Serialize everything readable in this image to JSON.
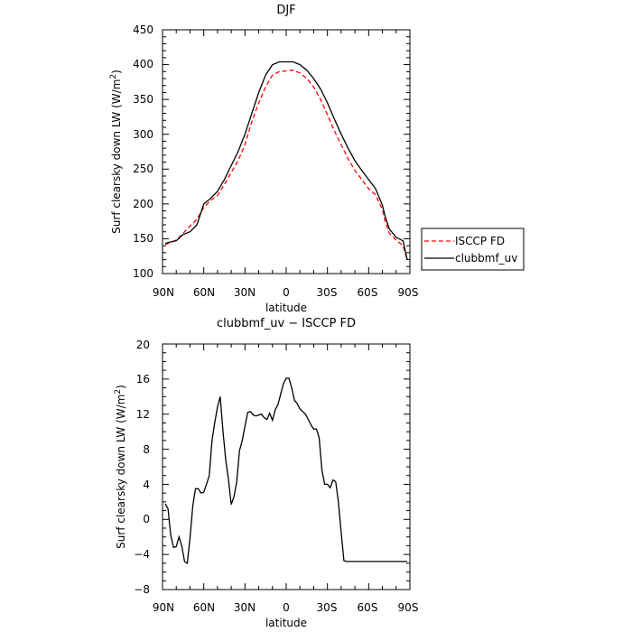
{
  "chart_data": [
    {
      "type": "line",
      "title": "DJF",
      "xlabel": "latitude",
      "ylabel": "Surf clearsky down LW (W/m²)",
      "ylabel_main": "Surf clearsky down LW (W/m",
      "ylabel_sup": "2",
      "ylabel_end": ")",
      "xlim": [
        90,
        -90
      ],
      "ylim": [
        100,
        450
      ],
      "yticks": [
        "100",
        "150",
        "200",
        "250",
        "300",
        "350",
        "400",
        "450"
      ],
      "xtick_labels": [
        "90N",
        "60N",
        "30N",
        "0",
        "30S",
        "60S",
        "90S"
      ],
      "legend_position": "right",
      "series": [
        {
          "name": "ISCCP FD",
          "color": "#ff0000",
          "dash": "dashed",
          "x": [
            88,
            85,
            80,
            75,
            70,
            65,
            60,
            55,
            50,
            45,
            40,
            35,
            30,
            25,
            20,
            15,
            10,
            5,
            0,
            -5,
            -10,
            -15,
            -20,
            -25,
            -30,
            -35,
            -40,
            -45,
            -50,
            -55,
            -60,
            -65,
            -70,
            -72,
            -75,
            -80,
            -85,
            -88
          ],
          "y": [
            142,
            144,
            148,
            158,
            168,
            178,
            195,
            205,
            212,
            228,
            245,
            262,
            285,
            318,
            345,
            368,
            385,
            390,
            391,
            392,
            388,
            380,
            368,
            350,
            328,
            305,
            285,
            265,
            248,
            235,
            222,
            213,
            192,
            175,
            158,
            148,
            140,
            120
          ]
        },
        {
          "name": "clubbmf_uv",
          "color": "#000000",
          "dash": "solid",
          "x": [
            88,
            85,
            80,
            75,
            70,
            65,
            60,
            55,
            50,
            45,
            40,
            35,
            30,
            25,
            20,
            15,
            10,
            5,
            0,
            -5,
            -10,
            -15,
            -20,
            -25,
            -30,
            -35,
            -40,
            -45,
            -50,
            -55,
            -60,
            -65,
            -70,
            -72,
            -75,
            -80,
            -85,
            -88
          ],
          "y": [
            143,
            145,
            147,
            156,
            160,
            170,
            200,
            208,
            218,
            235,
            255,
            275,
            300,
            330,
            360,
            385,
            400,
            404,
            404,
            404,
            400,
            392,
            380,
            365,
            345,
            322,
            300,
            280,
            262,
            248,
            235,
            222,
            198,
            182,
            164,
            152,
            147,
            120
          ]
        }
      ]
    },
    {
      "type": "line",
      "title": "clubbmf_uv − ISCCP FD",
      "xlabel": "latitude",
      "ylabel": "Surf clearsky down LW (W/m²)",
      "ylabel_main": "Surf clearsky down LW (W/m",
      "ylabel_sup": "2",
      "ylabel_end": ")",
      "xlim": [
        90,
        -90
      ],
      "ylim": [
        -8,
        20
      ],
      "yticks": [
        "−8",
        "−4",
        "0",
        "4",
        "8",
        "12",
        "16",
        "20"
      ],
      "xtick_labels": [
        "90N",
        "60N",
        "30N",
        "0",
        "30S",
        "60S",
        "90S"
      ],
      "series": [
        {
          "color": "#000000",
          "dash": "solid",
          "x": [
            88,
            86,
            84,
            82,
            80,
            78,
            76,
            74,
            72,
            70,
            68,
            66,
            64,
            62,
            60,
            58,
            56,
            54,
            52,
            50,
            48,
            46,
            44,
            42,
            40,
            38,
            36,
            34,
            32,
            30,
            28,
            26,
            24,
            22,
            20,
            18,
            16,
            14,
            12,
            10,
            8,
            6,
            4,
            2,
            0,
            -2,
            -4,
            -6,
            -8,
            -10,
            -12,
            -14,
            -16,
            -18,
            -20,
            -22,
            -24,
            -26,
            -28,
            -30,
            -32,
            -34,
            -36,
            -38,
            -40,
            -42,
            -44,
            -46,
            -48,
            -50,
            -52,
            -54,
            -56,
            -58,
            -60,
            -62,
            -64,
            -66,
            -68,
            -70,
            -72,
            -74,
            -76,
            -78,
            -80,
            -82,
            -84,
            -86,
            -88
          ],
          "y": [
            1.8,
            1.2,
            -1.8,
            -3.2,
            -3.1,
            -2,
            -3,
            -4.8,
            -5,
            -2.2,
            1.5,
            3.5,
            3.5,
            3,
            3.1,
            4,
            5,
            9,
            11,
            12.8,
            14,
            10,
            6.8,
            4.5,
            1.7,
            2.6,
            4.3,
            7.8,
            9,
            10.6,
            12.2,
            12.3,
            11.9,
            11.8,
            11.9,
            12,
            11.6,
            11.4,
            12.1,
            11.3,
            12.5,
            13.1,
            14.3,
            15.5,
            16.1,
            16.1,
            15,
            13.6,
            13.2,
            12.6,
            12.3,
            12,
            11.4,
            10.8,
            10.3,
            10.3,
            9.3,
            5.6,
            4,
            4,
            3.6,
            4.5,
            4.3,
            2,
            -1.5,
            -4.7,
            -4.8,
            -4.8,
            -4.8,
            -4.8,
            -4.8,
            -4.8,
            -4.8,
            -4.8,
            -4.8,
            -4.8,
            -4.8,
            -4.8,
            -4.8,
            -4.8,
            -4.8,
            -4.8,
            -4.8,
            -4.8,
            -4.8,
            -4.8,
            -4.8,
            -4.8,
            -4.8
          ]
        }
      ]
    }
  ]
}
